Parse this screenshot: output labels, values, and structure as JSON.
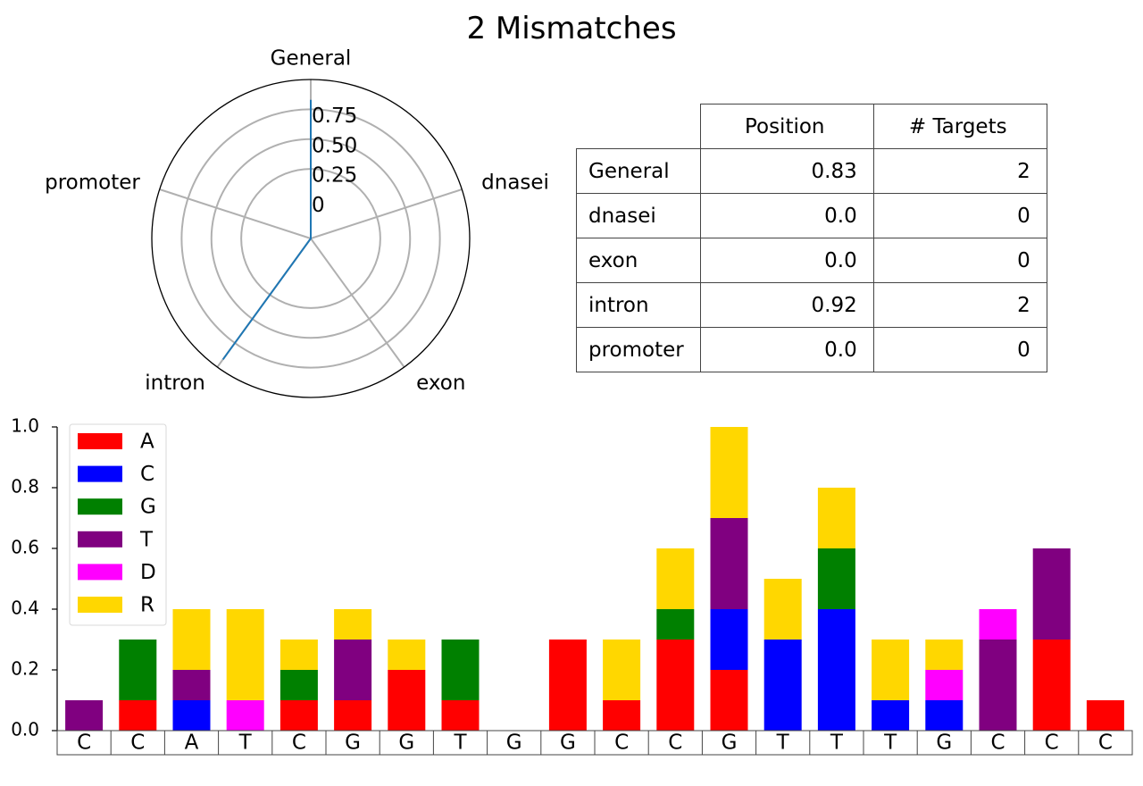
{
  "title": "2 Mismatches",
  "radar": {
    "categories": [
      "General",
      "dnasei",
      "exon",
      "intron",
      "promoter"
    ],
    "values": [
      0.83,
      0.0,
      0.0,
      0.92,
      0.0
    ],
    "ticks": [
      0,
      0.25,
      0.5,
      0.75
    ],
    "tick_labels": [
      "0",
      "0.25",
      "0.50",
      "0.75"
    ],
    "rmax": 1.0,
    "line_color": "#1f77b4",
    "grid_color": "#b0b0b0"
  },
  "table": {
    "headers": [
      "Position",
      "# Targets"
    ],
    "rows": [
      {
        "label": "General",
        "position": "0.83",
        "targets": "2"
      },
      {
        "label": "dnasei",
        "position": "0.0",
        "targets": "0"
      },
      {
        "label": "exon",
        "position": "0.0",
        "targets": "0"
      },
      {
        "label": "intron",
        "position": "0.92",
        "targets": "2"
      },
      {
        "label": "promoter",
        "position": "0.0",
        "targets": "0"
      }
    ]
  },
  "chart_data": {
    "type": "bar",
    "stacked": true,
    "categories": [
      "C",
      "C",
      "A",
      "T",
      "C",
      "G",
      "G",
      "T",
      "G",
      "G",
      "C",
      "C",
      "G",
      "T",
      "T",
      "T",
      "G",
      "C",
      "C",
      "C"
    ],
    "ylim": [
      0,
      1.0
    ],
    "yticks": [
      "0.0",
      "0.2",
      "0.4",
      "0.6",
      "0.8",
      "1.0"
    ],
    "legend_position": "top-left",
    "series": [
      {
        "name": "A",
        "color": "#ff0000",
        "values": [
          0,
          0.1,
          0,
          0,
          0.1,
          0.1,
          0.2,
          0.1,
          0,
          0.3,
          0.1,
          0.3,
          0.2,
          0,
          0,
          0,
          0,
          0,
          0.3,
          0.1
        ]
      },
      {
        "name": "C",
        "color": "#0000ff",
        "values": [
          0,
          0,
          0.1,
          0,
          0,
          0,
          0,
          0,
          0,
          0,
          0,
          0,
          0.2,
          0.3,
          0.4,
          0.1,
          0.1,
          0,
          0,
          0
        ]
      },
      {
        "name": "G",
        "color": "#008000",
        "values": [
          0,
          0.2,
          0,
          0,
          0.1,
          0,
          0,
          0.2,
          0,
          0,
          0,
          0.1,
          0,
          0,
          0.2,
          0,
          0,
          0,
          0,
          0
        ]
      },
      {
        "name": "T",
        "color": "#800080",
        "values": [
          0.1,
          0,
          0.1,
          0,
          0,
          0.2,
          0,
          0,
          0,
          0,
          0,
          0,
          0.3,
          0,
          0,
          0,
          0,
          0.3,
          0.3,
          0
        ]
      },
      {
        "name": "D",
        "color": "#ff00ff",
        "values": [
          0,
          0,
          0,
          0.1,
          0,
          0,
          0,
          0,
          0,
          0,
          0,
          0,
          0,
          0,
          0,
          0,
          0.1,
          0.1,
          0,
          0
        ]
      },
      {
        "name": "R",
        "color": "#ffd700",
        "values": [
          0,
          0,
          0.2,
          0.3,
          0.1,
          0.1,
          0.1,
          0,
          0,
          0,
          0.2,
          0.2,
          0.3,
          0.2,
          0.2,
          0.2,
          0.1,
          0,
          0,
          0
        ]
      }
    ]
  }
}
